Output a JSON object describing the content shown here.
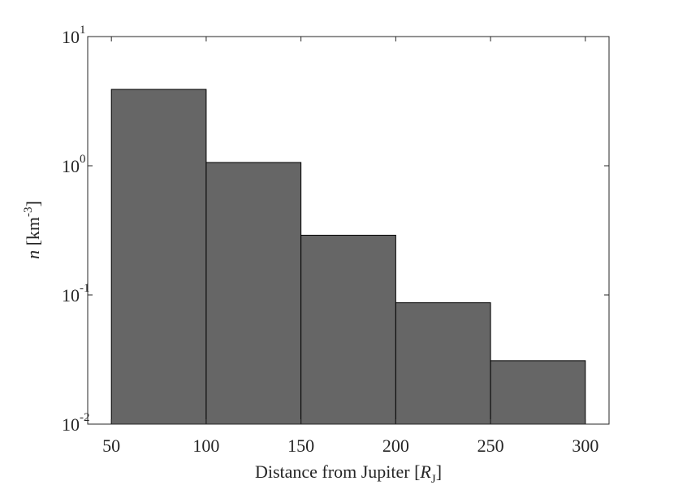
{
  "chart_data": {
    "type": "histogram",
    "bins": [
      50,
      100,
      150,
      200,
      250,
      300
    ],
    "values": [
      3.9,
      1.06,
      0.29,
      0.087,
      0.031
    ],
    "color": "#666666",
    "xlim": [
      37.5,
      312.5
    ],
    "xticks": [
      50,
      100,
      150,
      200,
      250,
      300
    ],
    "ylim": [
      0.01,
      10
    ],
    "log_y": true,
    "yticks": [
      {
        "value": 0.01,
        "label": "10",
        "exp": "-2"
      },
      {
        "value": 0.1,
        "label": "10",
        "exp": "-1"
      },
      {
        "value": 1,
        "label": "10",
        "exp": "0"
      },
      {
        "value": 10,
        "label": "10",
        "exp": "1"
      }
    ],
    "xlabel": [
      "Distance from Jupiter [",
      "R",
      "J",
      "]"
    ],
    "ylabel": [
      "n",
      " [km",
      "-3",
      "]"
    ]
  }
}
